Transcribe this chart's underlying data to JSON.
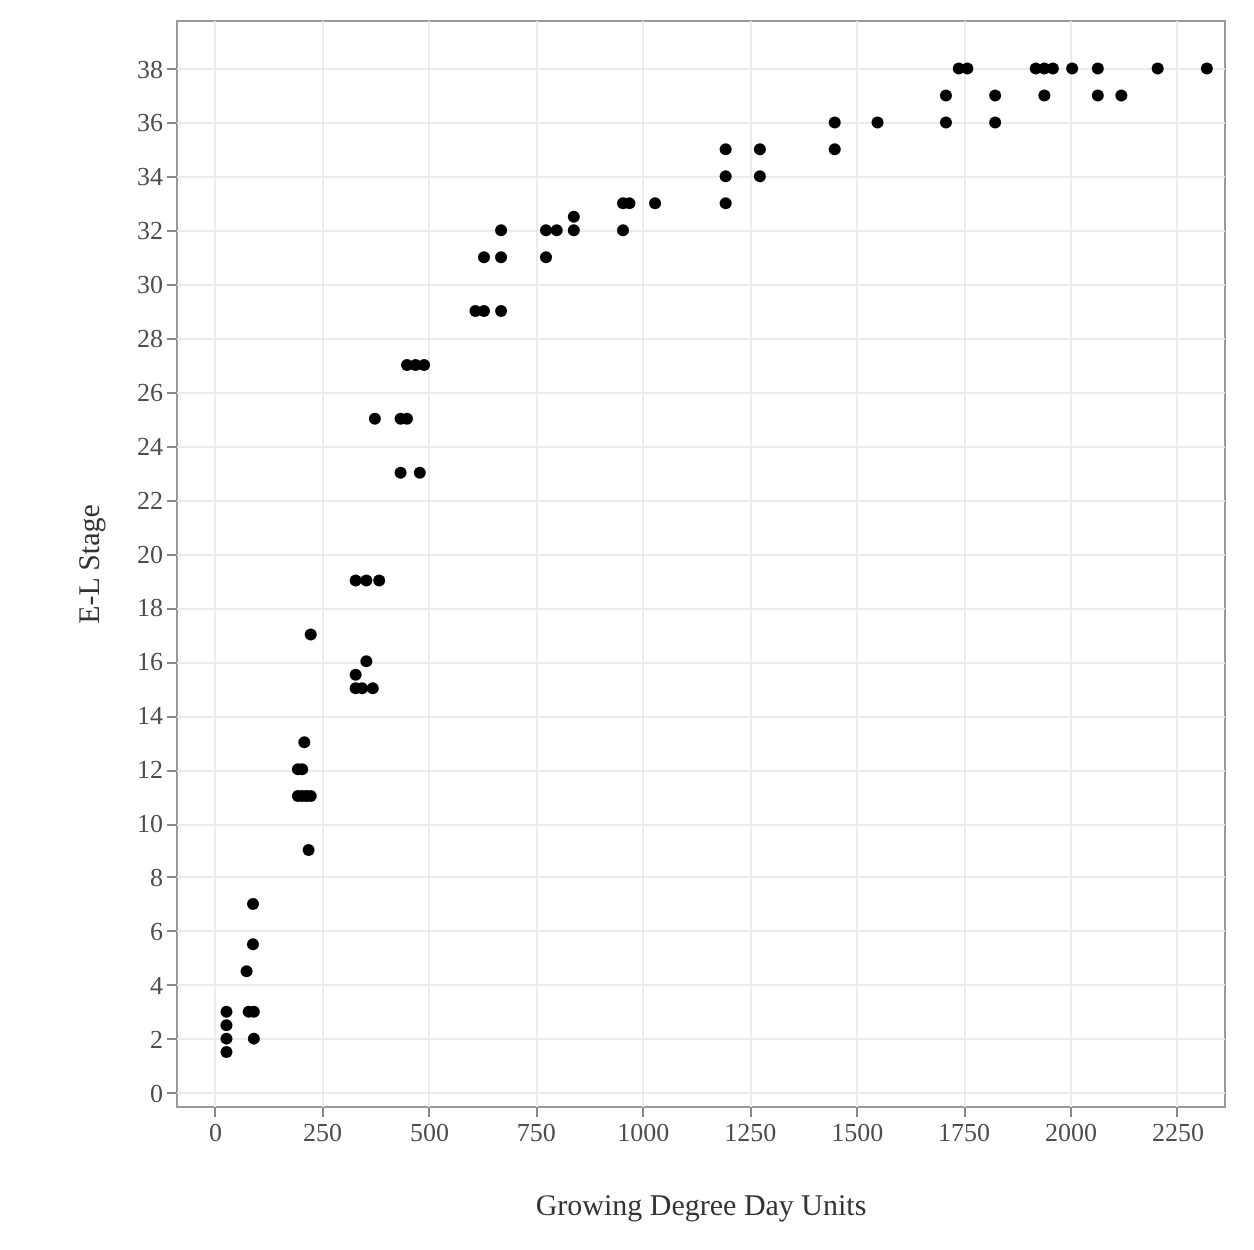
{
  "chart_data": {
    "type": "scatter",
    "xlabel": "Growing Degree Day Units",
    "ylabel": "E-L Stage",
    "x": [
      28,
      28,
      28,
      28,
      80,
      92,
      92,
      75,
      90,
      90,
      195,
      205,
      210,
      195,
      205,
      215,
      225,
      220,
      225,
      330,
      355,
      385,
      330,
      345,
      370,
      330,
      355,
      375,
      435,
      450,
      435,
      480,
      450,
      470,
      490,
      610,
      630,
      670,
      630,
      670,
      670,
      775,
      775,
      800,
      840,
      840,
      955,
      955,
      970,
      1030,
      1195,
      1195,
      1195,
      1275,
      1275,
      1450,
      1450,
      1550,
      1710,
      1710,
      1740,
      1760,
      1825,
      1825,
      1920,
      1940,
      1960,
      1940,
      2005,
      2065,
      2065,
      2120,
      2205,
      2320
    ],
    "series": [
      {
        "color": "#000000",
        "values": [
          1.5,
          2,
          2.5,
          3,
          3,
          3,
          2,
          4.5,
          5.5,
          7,
          12,
          12,
          13,
          11,
          11,
          11,
          11,
          9,
          17,
          19,
          19,
          19,
          15,
          15,
          15,
          15.5,
          16,
          25,
          25,
          25,
          23,
          23,
          27,
          27,
          27,
          29,
          29,
          29,
          31,
          31,
          32,
          31,
          32,
          32,
          32,
          32.5,
          32,
          33,
          33,
          33,
          33,
          34,
          35,
          34,
          35,
          35,
          36,
          36,
          36,
          37,
          38,
          38,
          37,
          36,
          38,
          38,
          38,
          37,
          38,
          38,
          37,
          37,
          38,
          38
        ]
      }
    ],
    "xlim": [
      -90,
      2360
    ],
    "ylim": [
      -0.5,
      39.8
    ],
    "xticks": [
      0,
      250,
      500,
      750,
      1000,
      1250,
      1500,
      1750,
      2000,
      2250
    ],
    "yticks": [
      0,
      2,
      4,
      6,
      8,
      10,
      12,
      14,
      16,
      18,
      20,
      22,
      24,
      26,
      28,
      30,
      32,
      34,
      36,
      38
    ],
    "grid": true,
    "marker": "circle"
  }
}
